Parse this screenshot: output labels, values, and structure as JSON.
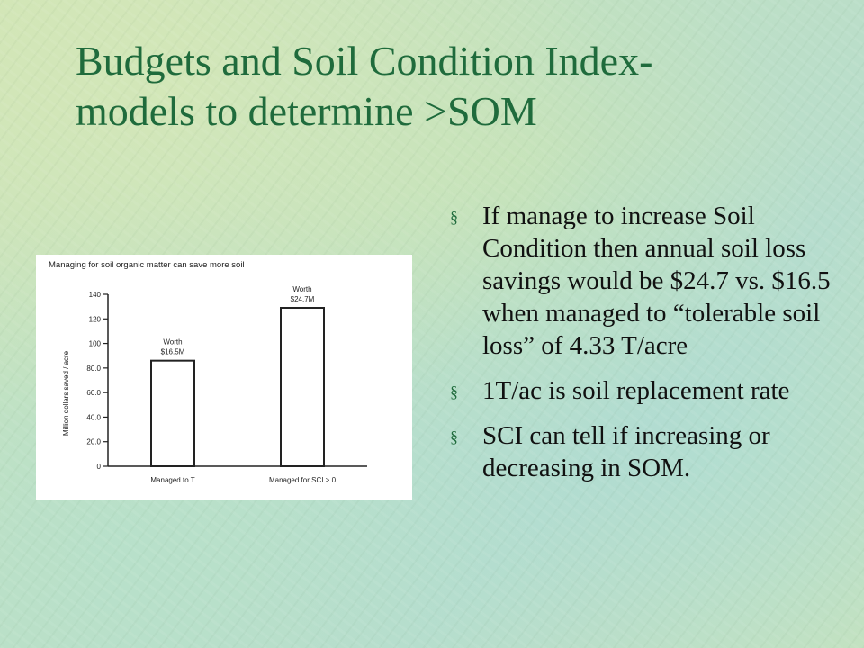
{
  "slide": {
    "title_line1": "Budgets and Soil Condition Index-",
    "title_line2": "models to determine >SOM"
  },
  "bullets": [
    {
      "text": "If manage to increase Soil Condition then annual soil loss savings would be $24.7  vs. $16.5 when managed to “tolerable soil loss” of 4.33 T/acre"
    },
    {
      "text": "1T/ac is soil  replacement rate"
    },
    {
      "text": "SCI can tell if increasing or decreasing in SOM."
    }
  ],
  "bullet_marker": "§",
  "colors": {
    "title": "#1f6b3c",
    "text": "#111111",
    "bar_fill": "#ffffff",
    "bar_stroke": "#222222"
  },
  "chart_data": {
    "type": "bar",
    "title": "Managing for soil organic matter can save more soil",
    "ylabel": "Million dollars saved / acre",
    "categories": [
      "Managed to T",
      "Managed for SCI > 0"
    ],
    "values": [
      86,
      129
    ],
    "bar_labels": [
      "Worth $16.5M",
      "Worth $24.7M"
    ],
    "ylim": [
      0,
      140
    ],
    "yticks": [
      0,
      20,
      40,
      60,
      80,
      100,
      120,
      140
    ],
    "ytick_labels": [
      "0",
      "20.0",
      "40.0",
      "60.0",
      "80.0",
      "100",
      "120",
      "140"
    ],
    "grid": false,
    "legend": "none"
  }
}
